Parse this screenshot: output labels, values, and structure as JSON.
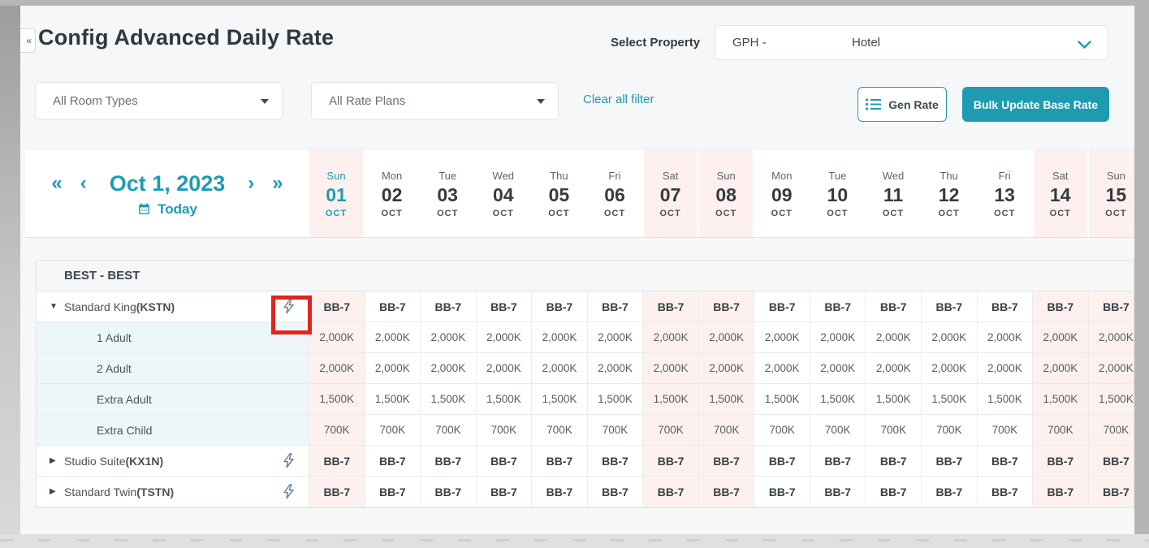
{
  "app": {
    "title": "Config Advanced Daily Rate"
  },
  "property": {
    "label": "Select Property",
    "value_prefix": "GPH -",
    "value_suffix": "Hotel"
  },
  "filters": {
    "room_types_value": "All Room Types",
    "rate_plans_value": "All Rate Plans",
    "clear_all_label": "Clear all filter",
    "gen_rate_label": "Gen Rate",
    "bulk_update_label": "Bulk Update Base Rate"
  },
  "date_nav": {
    "first_arrow": "«",
    "prev_arrow": "‹",
    "date_label": "Oct 1, 2023",
    "next_arrow": "›",
    "last_arrow": "»",
    "today_label": "Today"
  },
  "calendar": {
    "days": [
      {
        "dow": "Sun",
        "num": "01",
        "month": "OCT",
        "weekend": true,
        "selected": true
      },
      {
        "dow": "Mon",
        "num": "02",
        "month": "OCT",
        "weekend": false,
        "selected": false
      },
      {
        "dow": "Tue",
        "num": "03",
        "month": "OCT",
        "weekend": false,
        "selected": false
      },
      {
        "dow": "Wed",
        "num": "04",
        "month": "OCT",
        "weekend": false,
        "selected": false
      },
      {
        "dow": "Thu",
        "num": "05",
        "month": "OCT",
        "weekend": false,
        "selected": false
      },
      {
        "dow": "Fri",
        "num": "06",
        "month": "OCT",
        "weekend": false,
        "selected": false
      },
      {
        "dow": "Sat",
        "num": "07",
        "month": "OCT",
        "weekend": true,
        "selected": false
      },
      {
        "dow": "Sun",
        "num": "08",
        "month": "OCT",
        "weekend": true,
        "selected": false
      },
      {
        "dow": "Mon",
        "num": "09",
        "month": "OCT",
        "weekend": false,
        "selected": false
      },
      {
        "dow": "Tue",
        "num": "10",
        "month": "OCT",
        "weekend": false,
        "selected": false
      },
      {
        "dow": "Wed",
        "num": "11",
        "month": "OCT",
        "weekend": false,
        "selected": false
      },
      {
        "dow": "Thu",
        "num": "12",
        "month": "OCT",
        "weekend": false,
        "selected": false
      },
      {
        "dow": "Fri",
        "num": "13",
        "month": "OCT",
        "weekend": false,
        "selected": false
      },
      {
        "dow": "Sat",
        "num": "14",
        "month": "OCT",
        "weekend": true,
        "selected": false
      },
      {
        "dow": "Sun",
        "num": "15",
        "month": "OCT",
        "weekend": true,
        "selected": false
      }
    ]
  },
  "rate_table": {
    "group_label": "BEST - BEST",
    "rows": [
      {
        "type": "room",
        "label": "Standard King",
        "code": "(KSTN)",
        "expanded": true,
        "has_bolt": true,
        "bolt_highlighted": true,
        "value": "BB-7"
      },
      {
        "type": "occ",
        "label": "1 Adult",
        "value": "2,000K"
      },
      {
        "type": "occ",
        "label": "2 Adult",
        "value": "2,000K"
      },
      {
        "type": "occ",
        "label": "Extra Adult",
        "value": "1,500K"
      },
      {
        "type": "occ",
        "label": "Extra Child",
        "value": "700K"
      },
      {
        "type": "room",
        "label": "Studio Suite",
        "code": "(KX1N)",
        "expanded": false,
        "has_bolt": true,
        "bolt_highlighted": false,
        "value": "BB-7"
      },
      {
        "type": "room",
        "label": "Standard Twin",
        "code": "(TSTN)",
        "expanded": false,
        "has_bolt": true,
        "bolt_highlighted": false,
        "value": "BB-7"
      }
    ]
  },
  "colors": {
    "accent_teal": "#1f9bb1",
    "weekend_pink": "#fdf1ef",
    "subrow_blue": "#edf7fa",
    "annotation_red": "#e1241f"
  }
}
